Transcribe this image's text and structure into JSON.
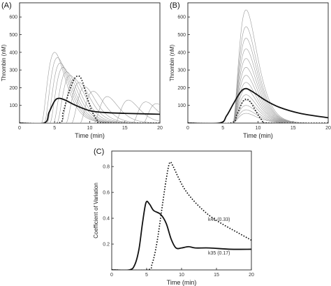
{
  "chart_data": [
    {
      "type": "line",
      "panel_label": "(A)",
      "xlabel": "Time (min)",
      "ylabel": "Thrombin (nM)",
      "xlim": [
        0,
        20
      ],
      "ylim": [
        0,
        680
      ],
      "xticks": [
        0,
        5,
        10,
        15,
        20
      ],
      "yticks": [
        100,
        200,
        300,
        400,
        500,
        600
      ],
      "thin_curves": {
        "color": "#9a9a9a",
        "peaks": [
          {
            "t": 5.0,
            "h": 400
          },
          {
            "t": 5.4,
            "h": 370
          },
          {
            "t": 5.8,
            "h": 340
          },
          {
            "t": 6.2,
            "h": 315
          },
          {
            "t": 6.7,
            "h": 290
          },
          {
            "t": 7.2,
            "h": 270
          },
          {
            "t": 7.8,
            "h": 250
          },
          {
            "t": 8.5,
            "h": 230
          },
          {
            "t": 9.3,
            "h": 205
          },
          {
            "t": 10.5,
            "h": 180
          },
          {
            "t": 12.5,
            "h": 150
          },
          {
            "t": 15.5,
            "h": 130
          },
          {
            "t": 18.0,
            "h": 120
          },
          {
            "t": 19.5,
            "h": 110
          }
        ]
      },
      "series": [
        {
          "style": "solid-bold",
          "x": [
            0,
            3.5,
            4.2,
            5.0,
            5.6,
            6.5,
            8.0,
            10.0,
            12.0,
            15.0,
            20.0
          ],
          "y": [
            0,
            0,
            60,
            125,
            140,
            130,
            100,
            70,
            60,
            55,
            50
          ]
        },
        {
          "style": "dotted",
          "x": [
            0,
            5.5,
            6.2,
            7.0,
            7.8,
            8.5,
            9.0,
            9.6,
            10.3,
            11.0,
            12.0,
            20.0
          ],
          "y": [
            0,
            0,
            60,
            170,
            250,
            265,
            230,
            150,
            70,
            20,
            0,
            0
          ]
        }
      ]
    },
    {
      "type": "line",
      "panel_label": "(B)",
      "xlabel": "Time (min)",
      "ylabel": "Thrombin (nM)",
      "xlim": [
        0,
        20
      ],
      "ylim": [
        0,
        680
      ],
      "xticks": [
        0,
        5,
        10,
        15,
        20
      ],
      "yticks": [
        100,
        200,
        300,
        400,
        500,
        600
      ],
      "thin_curves": {
        "color": "#9a9a9a",
        "peak_time": 8.3,
        "peaks": [
          640,
          545,
          480,
          420,
          365,
          315,
          270,
          230,
          195,
          160,
          130,
          100,
          75,
          55
        ]
      },
      "series": [
        {
          "style": "solid-bold",
          "x": [
            0,
            4.5,
            5.5,
            6.5,
            7.5,
            8.3,
            9.5,
            11.0,
            13.0,
            16.0,
            20.0
          ],
          "y": [
            0,
            0,
            40,
            110,
            175,
            195,
            170,
            130,
            90,
            55,
            30
          ]
        },
        {
          "style": "dotted",
          "x": [
            0,
            6.0,
            7.0,
            7.8,
            8.4,
            9.0,
            9.8,
            10.6,
            11.5,
            20.0
          ],
          "y": [
            0,
            0,
            50,
            120,
            135,
            115,
            60,
            15,
            0,
            0
          ]
        }
      ]
    },
    {
      "type": "line",
      "panel_label": "(C)",
      "xlabel": "Time (min)",
      "ylabel": "Coefficient of Variation",
      "xlim": [
        0,
        20
      ],
      "ylim": [
        0,
        0.92
      ],
      "xticks": [
        0,
        5,
        10,
        15,
        20
      ],
      "yticks": [
        0.2,
        0.4,
        0.6,
        0.8
      ],
      "series": [
        {
          "name": "k35 (0.17)",
          "style": "solid-bold",
          "x": [
            0,
            2.5,
            3.3,
            3.9,
            4.4,
            4.9,
            5.4,
            6.0,
            7.0,
            7.8,
            8.5,
            9.2,
            10.0,
            11.0,
            12.0,
            14.0,
            17.0,
            20.0
          ],
          "y": [
            0,
            0,
            0.04,
            0.16,
            0.36,
            0.52,
            0.51,
            0.46,
            0.43,
            0.36,
            0.24,
            0.17,
            0.17,
            0.18,
            0.17,
            0.17,
            0.16,
            0.16
          ]
        },
        {
          "name": "k41 (0.33)",
          "style": "dotted",
          "x": [
            0,
            5.0,
            5.8,
            6.5,
            7.2,
            7.8,
            8.3,
            8.8,
            9.5,
            10.5,
            12.0,
            14.0,
            16.0,
            18.0,
            20.0
          ],
          "y": [
            0,
            0,
            0.05,
            0.22,
            0.48,
            0.7,
            0.83,
            0.8,
            0.72,
            0.62,
            0.52,
            0.42,
            0.35,
            0.29,
            0.23
          ]
        }
      ],
      "annotations": [
        {
          "text": "k41 (0.33)",
          "x": 13.8,
          "y": 0.38
        },
        {
          "text": "k35 (0.17)",
          "x": 13.8,
          "y": 0.12
        }
      ]
    }
  ]
}
